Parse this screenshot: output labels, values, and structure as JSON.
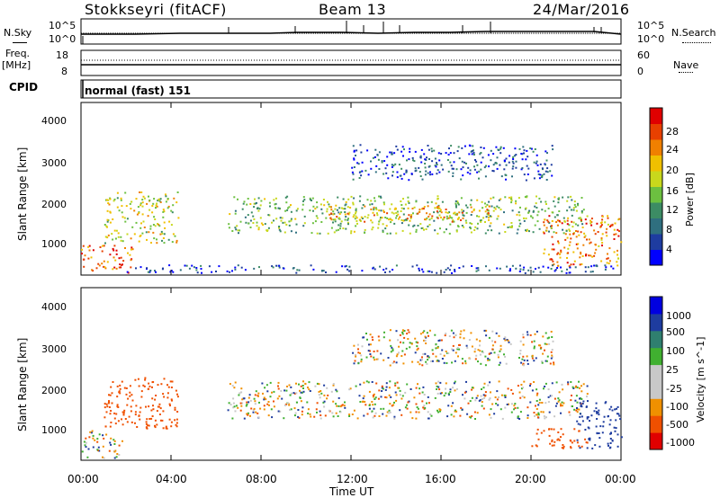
{
  "header": {
    "station": "Stokkseyri (fitACF)",
    "beam": "Beam 13",
    "date": "24/Mar/2016"
  },
  "noise_panel": {
    "left_label": "N.Sky",
    "right_label": "N.Search",
    "left_ticks": [
      "10^5",
      "10^0"
    ],
    "right_ticks": [
      "10^5",
      "10^0"
    ]
  },
  "freq_panel": {
    "left_label_1": "Freq.",
    "left_label_2": "[MHz]",
    "right_label": "Nave",
    "left_ticks": [
      "18",
      "8"
    ],
    "right_ticks": [
      "60",
      "0"
    ]
  },
  "cpid_panel": {
    "label": "CPID",
    "value": "normal (fast) 151"
  },
  "axes": {
    "ylabel": "Slant Range [km]",
    "yticks": [
      "4000",
      "3000",
      "2000",
      "1000"
    ],
    "xticks": [
      "00:00",
      "04:00",
      "08:00",
      "12:00",
      "16:00",
      "20:00",
      "00:00"
    ],
    "xlabel": "Time UT"
  },
  "colors": {
    "power_scale": [
      "#0000ff",
      "#1e3ca0",
      "#2f6f7f",
      "#3c8c64",
      "#6cc040",
      "#c8d81c",
      "#f0c000",
      "#f08000",
      "#e84000",
      "#e00000"
    ],
    "velocity_scale": [
      "#e00000",
      "#f05000",
      "#f09000",
      "#c8c8c8",
      "#c8c8c8",
      "#40b030",
      "#2f7f6f",
      "#1e3c9f",
      "#0000e0"
    ]
  },
  "chart_data": [
    {
      "type": "heatmap",
      "title": "Power",
      "colorbar_label": "Power [dB]",
      "colorbar_ticks": [
        "28",
        "24",
        "20",
        "16",
        "12",
        "8",
        "4"
      ],
      "colorbar_range": [
        0,
        32
      ],
      "xlim": [
        "00:00",
        "24:00"
      ],
      "ylim": [
        180,
        4550
      ],
      "regions": [
        {
          "t0": 0.0,
          "t1": 2.3,
          "r0": 250,
          "r1": 950,
          "v": 26
        },
        {
          "t0": 1.0,
          "t1": 4.3,
          "r0": 1000,
          "r1": 2300,
          "v": 18
        },
        {
          "t0": 6.5,
          "t1": 22.5,
          "r0": 1250,
          "r1": 2200,
          "v": 14
        },
        {
          "t0": 11.0,
          "t1": 18.5,
          "r0": 1550,
          "r1": 1950,
          "v": 22
        },
        {
          "t0": 12.0,
          "t1": 21.0,
          "r0": 2600,
          "r1": 3500,
          "v": 6
        },
        {
          "t0": 20.5,
          "t1": 24.0,
          "r0": 400,
          "r1": 1700,
          "v": 24
        },
        {
          "t0": 2.0,
          "t1": 24.0,
          "r0": 250,
          "r1": 450,
          "v": 5
        }
      ]
    },
    {
      "type": "heatmap",
      "title": "Velocity",
      "colorbar_label": "Velocity [m s^-1]",
      "colorbar_ticks": [
        "1000",
        "500",
        "100",
        "25",
        "-25",
        "-100",
        "-500",
        "-1000"
      ],
      "colorbar_range": [
        -1000,
        1000
      ],
      "xlim": [
        "00:00",
        "24:00"
      ],
      "ylim": [
        180,
        4550
      ],
      "regions": [
        {
          "t0": 0.0,
          "t1": 1.8,
          "r0": 250,
          "r1": 950,
          "v": 0
        },
        {
          "t0": 1.0,
          "t1": 4.3,
          "r0": 1000,
          "r1": 2300,
          "v": -300
        },
        {
          "t0": 6.5,
          "t1": 22.5,
          "r0": 1250,
          "r1": 2200,
          "v": 0
        },
        {
          "t0": 12.0,
          "t1": 21.0,
          "r0": 2600,
          "r1": 3500,
          "v": 0
        },
        {
          "t0": 20.0,
          "t1": 22.5,
          "r0": 500,
          "r1": 1000,
          "v": -300
        },
        {
          "t0": 22.0,
          "t1": 24.0,
          "r0": 500,
          "r1": 1700,
          "v": 300
        }
      ]
    }
  ]
}
